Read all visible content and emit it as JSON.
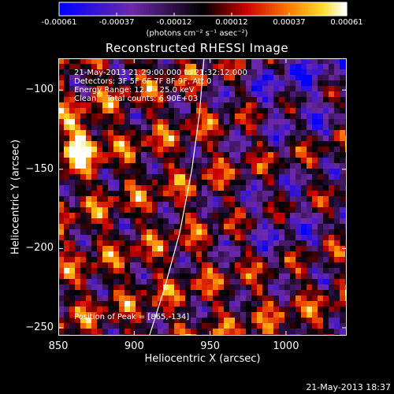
{
  "colorbar": {
    "tick_labels": [
      "-0.00061",
      "-0.00037",
      "-0.00012",
      "0.00012",
      "0.00037",
      "0.00061"
    ],
    "units_label": "(photons cm⁻² s⁻¹ asec⁻²)"
  },
  "annotations": {
    "time_range": "21-May-2013 21:29:00.000 to 21:32:12.000",
    "detectors": "Detectors: 3F 5F 6F 7F 8F 9F, Att 0",
    "energy": "Energy Range: 12.0 - 25.0 keV",
    "clean": "Clean    Total counts: 6.90E+03",
    "peak": "Position of Peak = [865,-134]"
  },
  "footer": {
    "date": "21-May-2013 18:37"
  },
  "chart_data": {
    "type": "heatmap",
    "title": "Reconstructed RHESSI Image",
    "xlabel": "Heliocentric X (arcsec)",
    "ylabel": "Heliocentric Y (arcsec)",
    "xlim": [
      850,
      1040
    ],
    "ylim": [
      -255,
      -80
    ],
    "x_ticks": [
      850,
      900,
      950,
      1000
    ],
    "y_ticks": [
      -100,
      -150,
      -200,
      -250
    ],
    "colorbar_range": [
      -0.00061,
      0.00061
    ],
    "peak_position": [
      865,
      -134
    ],
    "limb_curve": [
      [
        910,
        -255
      ],
      [
        920,
        -225
      ],
      [
        930,
        -190
      ],
      [
        938,
        -150
      ],
      [
        943,
        -115
      ],
      [
        946,
        -80
      ]
    ]
  }
}
